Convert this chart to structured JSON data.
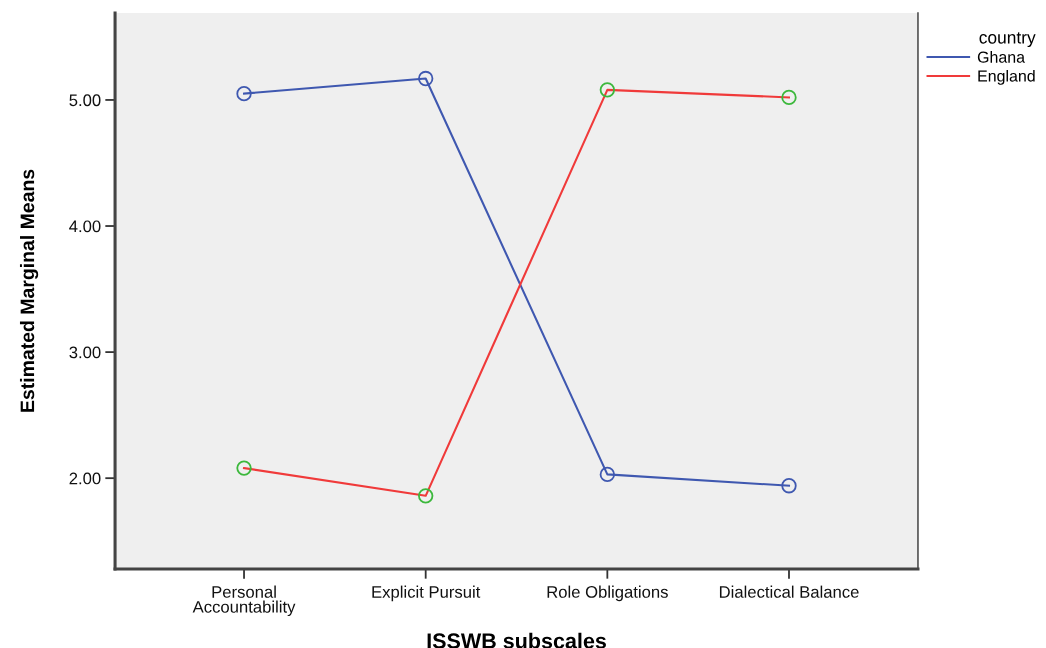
{
  "chart_data": {
    "type": "line",
    "xlabel": "ISSWB subscales",
    "ylabel": "Estimated Marginal Means",
    "legend_title": "country",
    "categories": [
      "Personal\nAccountability",
      "Explicit Pursuit",
      "Role Obligations",
      "Dialectical Balance"
    ],
    "series": [
      {
        "name": "Ghana",
        "color": "#3f58b0",
        "values": [
          5.05,
          5.17,
          2.03,
          1.94
        ]
      },
      {
        "name": "England",
        "color": "#f03a3a",
        "colors": [
          "#3cb83c",
          "#3cb83c",
          "#3cb83c",
          "#3cb83c"
        ],
        "values": [
          2.08,
          1.86,
          5.08,
          5.02
        ]
      }
    ],
    "ylim": [
      1.28,
      5.69
    ],
    "yticks": [
      {
        "value": 2,
        "label": "2.00"
      },
      {
        "value": 3,
        "label": "3.00"
      },
      {
        "value": 4,
        "label": "4.00"
      },
      {
        "value": 5,
        "label": "5.00"
      }
    ],
    "legend": "top right",
    "marker": "circle",
    "line_style": "solid"
  }
}
